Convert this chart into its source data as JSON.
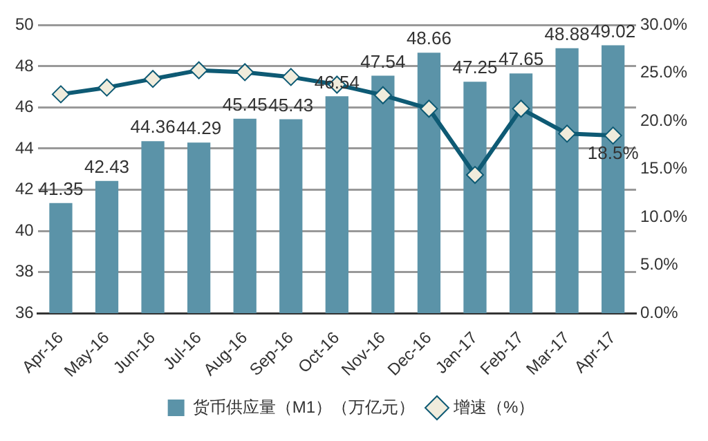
{
  "chart_data": {
    "type": "bar",
    "categories": [
      "Apr-16",
      "May-16",
      "Jun-16",
      "Jul-16",
      "Aug-16",
      "Sep-16",
      "Oct-16",
      "Nov-16",
      "Dec-16",
      "Jan-17",
      "Feb-17",
      "Mar-17",
      "Apr-17"
    ],
    "series": [
      {
        "name": "货币供应量（M1）（万亿元）",
        "color": "#5b93a8",
        "values": [
          41.35,
          42.43,
          44.36,
          44.29,
          45.45,
          45.43,
          46.54,
          47.54,
          48.66,
          47.25,
          47.65,
          48.88,
          49.02
        ],
        "data_labels": true
      },
      {
        "name": "增速（%）",
        "type": "line",
        "axis": "y2",
        "color": "#0e5a74",
        "marker": "diamond",
        "values": [
          22.8,
          23.5,
          24.4,
          25.3,
          25.1,
          24.6,
          23.8,
          22.7,
          21.3,
          14.4,
          21.3,
          18.7,
          18.5
        ],
        "value_labels": [
          null,
          null,
          null,
          null,
          null,
          null,
          null,
          null,
          null,
          null,
          null,
          null,
          "18.5%"
        ]
      }
    ],
    "ylim": [
      36,
      50
    ],
    "yticks": [
      36,
      38,
      40,
      42,
      44,
      46,
      48,
      50
    ],
    "y2lim": [
      0,
      30
    ],
    "y2ticks": [
      {
        "value": 0,
        "label": "0.0%"
      },
      {
        "value": 5,
        "label": "5.0%"
      },
      {
        "value": 10,
        "label": "10.0%"
      },
      {
        "value": 15,
        "label": "15.0%"
      },
      {
        "value": 20,
        "label": "20.0%"
      },
      {
        "value": 25,
        "label": "25.0%"
      },
      {
        "value": 30,
        "label": "30.0%"
      }
    ],
    "grid": "y",
    "legend": "bottom"
  }
}
